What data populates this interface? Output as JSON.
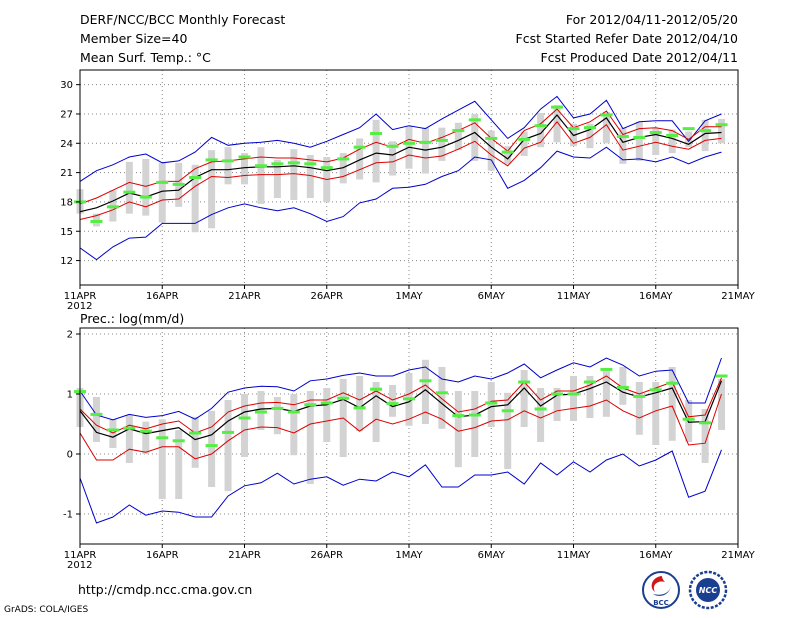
{
  "header": {
    "title": "DERF/NCC/BCC Monthly Forecast",
    "member_size": "Member Size=40",
    "variable": "Mean Surf. Temp.: °C",
    "period": "For 2012/04/11-2012/05/20",
    "started": "Fcst Started Refer Date 2012/04/10",
    "produced": "Fcst Produced Date 2012/04/11"
  },
  "footer": {
    "url": "http://cmdp.ncc.cma.gov.cn",
    "grads": "GrADS: COLA/IGES",
    "logo_left_text": "BCC",
    "logo_right_text": "NCC"
  },
  "colors": {
    "mean_line": "#000000",
    "inner_band": "#dd0000",
    "outer_band": "#0000cc",
    "box": "#d3d3d3",
    "median_marker": "#55ee44"
  },
  "chart_data": [
    {
      "type": "line",
      "title": "",
      "ylabel": "Mean Surf. Temp.: °C",
      "xlabel": "",
      "ylim": [
        9.5,
        31.5
      ],
      "yticks": [
        12,
        15,
        18,
        21,
        24,
        27,
        30
      ],
      "x": [
        1,
        2,
        3,
        4,
        5,
        6,
        7,
        8,
        9,
        10,
        11,
        12,
        13,
        14,
        15,
        16,
        17,
        18,
        19,
        20,
        21,
        22,
        23,
        24,
        25,
        26,
        27,
        28,
        29,
        30,
        31,
        32,
        33,
        34,
        35,
        36,
        37,
        38,
        39,
        40
      ],
      "xticks": [
        {
          "day": 1,
          "label": "11APR",
          "sub": "2012"
        },
        {
          "day": 6,
          "label": "16APR"
        },
        {
          "day": 11,
          "label": "21APR"
        },
        {
          "day": 16,
          "label": "26APR"
        },
        {
          "day": 21,
          "label": "1MAY"
        },
        {
          "day": 26,
          "label": "6MAY"
        },
        {
          "day": 31,
          "label": "11MAY"
        },
        {
          "day": 36,
          "label": "16MAY"
        },
        {
          "day": 41,
          "label": "21MAY"
        }
      ],
      "series": [
        {
          "name": "mean",
          "values": [
            17,
            17.4,
            18.1,
            18.9,
            18.5,
            19.1,
            19.2,
            20.5,
            21.3,
            21.3,
            21.5,
            21.6,
            21.6,
            21.7,
            21.5,
            21.2,
            21.5,
            22.3,
            23,
            22.8,
            23.6,
            23.3,
            23.6,
            24.3,
            25.1,
            23.6,
            22.4,
            24.4,
            25,
            26.9,
            24.8,
            25.4,
            26.6,
            24.1,
            24.6,
            24.9,
            24.5,
            23.9,
            25,
            25.1
          ]
        },
        {
          "name": "upper-inner",
          "values": [
            17.8,
            18.4,
            19.2,
            20,
            19.6,
            20.1,
            20.1,
            21.4,
            22.1,
            22.2,
            22.4,
            22.6,
            22.5,
            22.5,
            22.3,
            22.1,
            22.5,
            23.4,
            24.1,
            23.6,
            24.4,
            24,
            24.6,
            25.3,
            26.1,
            24.5,
            23.2,
            25.3,
            26,
            27.5,
            25.6,
            26.2,
            27.3,
            24.9,
            25.5,
            25.6,
            25.3,
            24.4,
            25.7,
            25.7
          ]
        },
        {
          "name": "lower-inner",
          "values": [
            16.2,
            16.6,
            17.2,
            18,
            17.5,
            18.2,
            18.3,
            19.6,
            20.6,
            20.5,
            20.7,
            20.8,
            20.8,
            20.9,
            20.7,
            20.3,
            20.6,
            21.3,
            22,
            22.1,
            22.8,
            22.5,
            22.7,
            23.4,
            24.2,
            22.8,
            21.7,
            23.5,
            24.1,
            26.2,
            24,
            24.6,
            25.9,
            23.3,
            23.7,
            24.1,
            23.7,
            23.4,
            24.3,
            24.5
          ]
        },
        {
          "name": "upper-outer",
          "values": [
            20.1,
            21.2,
            21.8,
            22.6,
            22.9,
            22,
            22.2,
            23.1,
            24.6,
            23.8,
            24,
            24.1,
            24.3,
            24,
            23.6,
            24.2,
            24.9,
            25.6,
            27,
            25.4,
            25.8,
            25.5,
            26.5,
            27.4,
            28.3,
            26.4,
            24.5,
            25.6,
            27.5,
            28.8,
            26.6,
            27,
            28.4,
            25.5,
            26.2,
            26.3,
            26.3,
            24.2,
            26.3,
            27
          ]
        },
        {
          "name": "lower-outer",
          "values": [
            13.3,
            12.1,
            13.4,
            14.3,
            14.4,
            15.8,
            15.8,
            15.8,
            16.7,
            17.4,
            17.8,
            17.4,
            17.1,
            17.4,
            16.8,
            16,
            16.5,
            17.9,
            18.3,
            19.4,
            19.5,
            19.8,
            20.6,
            21.2,
            22.6,
            22.3,
            19.4,
            20.2,
            21.5,
            23.2,
            22.6,
            22.5,
            23.6,
            22.3,
            22.4,
            22.1,
            22.6,
            21.9,
            22.6,
            23.1
          ]
        },
        {
          "name": "box-high",
          "values": [
            19.3,
            16.8,
            19.2,
            22.1,
            22.4,
            22,
            22,
            21.8,
            23.3,
            23.6,
            23,
            23.6,
            22.3,
            23.4,
            22.8,
            22.6,
            23,
            24.5,
            26.4,
            24.2,
            25.8,
            25.6,
            25.6,
            26.1,
            27,
            25.3,
            23.7,
            25.2,
            27.1,
            27.9,
            26,
            26,
            27.2,
            25.6,
            26.2,
            25.6,
            25.4,
            25.2,
            26.4,
            26.5
          ]
        },
        {
          "name": "box-low",
          "values": [
            16.8,
            15.5,
            16,
            16.8,
            16.6,
            15.9,
            17.5,
            14.9,
            15.3,
            19.8,
            19.8,
            17.8,
            18.4,
            18.2,
            18.4,
            18,
            19.9,
            20.3,
            20,
            20.7,
            21.4,
            20.9,
            22.2,
            23.3,
            22.2,
            21.2,
            21.9,
            22.7,
            23.6,
            24.1,
            23.7,
            23.5,
            24,
            21.9,
            22.2,
            22.8,
            23,
            23.6,
            23.2,
            24
          ]
        },
        {
          "name": "median-marker",
          "values": [
            18,
            16,
            17.5,
            19,
            18.5,
            20,
            19.8,
            20.5,
            22.3,
            22.2,
            22.6,
            21.7,
            21.9,
            22,
            21.9,
            21.5,
            22.4,
            23.6,
            25,
            23.7,
            24,
            24.1,
            24.3,
            25.3,
            26.4,
            24.5,
            23.1,
            24.4,
            25.8,
            27.7,
            25.5,
            25.6,
            26.9,
            24.7,
            24.6,
            25.1,
            24.8,
            25.5,
            25.3,
            25.9
          ]
        }
      ]
    },
    {
      "type": "line",
      "title": "",
      "ylabel": "Prec.: log(mm/d)",
      "xlabel": "",
      "ylim": [
        -1.5,
        2.1
      ],
      "yticks": [
        -1,
        0,
        1,
        2
      ],
      "x": [
        1,
        2,
        3,
        4,
        5,
        6,
        7,
        8,
        9,
        10,
        11,
        12,
        13,
        14,
        15,
        16,
        17,
        18,
        19,
        20,
        21,
        22,
        23,
        24,
        25,
        26,
        27,
        28,
        29,
        30,
        31,
        32,
        33,
        34,
        35,
        36,
        37,
        38,
        39,
        40
      ],
      "xticks": [
        {
          "day": 1,
          "label": "11APR",
          "sub": "2012"
        },
        {
          "day": 6,
          "label": "16APR"
        },
        {
          "day": 11,
          "label": "21APR"
        },
        {
          "day": 16,
          "label": "26APR"
        },
        {
          "day": 21,
          "label": "1MAY"
        },
        {
          "day": 26,
          "label": "6MAY"
        },
        {
          "day": 31,
          "label": "11MAY"
        },
        {
          "day": 36,
          "label": "16MAY"
        },
        {
          "day": 41,
          "label": "21MAY"
        }
      ],
      "series": [
        {
          "name": "mean",
          "values": [
            0.72,
            0.36,
            0.28,
            0.42,
            0.34,
            0.39,
            0.44,
            0.24,
            0.32,
            0.55,
            0.7,
            0.75,
            0.76,
            0.71,
            0.8,
            0.82,
            0.91,
            0.77,
            0.97,
            0.79,
            0.87,
            1.07,
            0.84,
            0.62,
            0.65,
            0.79,
            0.82,
            1.1,
            0.8,
            0.98,
            1,
            1.09,
            1.2,
            1.03,
            0.95,
            1.02,
            1.1,
            0.53,
            0.54,
            1.22
          ]
        },
        {
          "name": "upper-inner",
          "values": [
            0.75,
            0.48,
            0.35,
            0.48,
            0.42,
            0.5,
            0.55,
            0.35,
            0.45,
            0.7,
            0.8,
            0.85,
            0.86,
            0.82,
            0.9,
            0.9,
            1.02,
            0.9,
            1.05,
            0.9,
            1,
            1.15,
            0.92,
            0.7,
            0.75,
            0.88,
            0.9,
            1.2,
            0.9,
            1.05,
            1.05,
            1.15,
            1.3,
            1.1,
            1,
            1.1,
            1.2,
            0.62,
            0.65,
            1.27
          ]
        },
        {
          "name": "lower-inner",
          "values": [
            0.35,
            -0.1,
            -0.1,
            0.08,
            0.03,
            0.12,
            0.12,
            -0.08,
            0,
            0.22,
            0.4,
            0.45,
            0.44,
            0.35,
            0.5,
            0.55,
            0.6,
            0.38,
            0.58,
            0.5,
            0.58,
            0.7,
            0.58,
            0.38,
            0.44,
            0.55,
            0.57,
            0.72,
            0.6,
            0.72,
            0.76,
            0.8,
            0.9,
            0.72,
            0.6,
            0.72,
            0.8,
            0.15,
            0.18,
            1
          ]
        },
        {
          "name": "upper-outer",
          "values": [
            1.05,
            0.65,
            0.57,
            0.66,
            0.61,
            0.64,
            0.71,
            0.58,
            0.76,
            1.03,
            1.1,
            1.13,
            1.12,
            1.05,
            1.22,
            1.25,
            1.31,
            1.35,
            1.3,
            1.3,
            1.4,
            1.45,
            1.25,
            1.2,
            1.3,
            1.25,
            1.35,
            1.5,
            1.27,
            1.4,
            1.52,
            1.45,
            1.6,
            1.48,
            1.3,
            1.38,
            1.4,
            0.85,
            0.85,
            1.6
          ]
        },
        {
          "name": "lower-outer",
          "values": [
            -0.4,
            -1.15,
            -1.05,
            -0.85,
            -1.02,
            -0.95,
            -0.97,
            -1.05,
            -1.05,
            -0.7,
            -0.53,
            -0.48,
            -0.32,
            -0.5,
            -0.42,
            -0.38,
            -0.52,
            -0.42,
            -0.45,
            -0.3,
            -0.38,
            -0.18,
            -0.55,
            -0.55,
            -0.35,
            -0.35,
            -0.3,
            -0.5,
            -0.15,
            -0.35,
            -0.13,
            -0.3,
            -0.1,
            0,
            -0.2,
            -0.1,
            0.05,
            -0.72,
            -0.62,
            0.07
          ]
        },
        {
          "name": "box-high",
          "values": [
            1.1,
            0.95,
            0.58,
            0.65,
            0.54,
            0.58,
            0.4,
            0.62,
            0.72,
            0.9,
            1,
            1.05,
            0.95,
            1,
            1.05,
            1.1,
            1.25,
            1.3,
            1.2,
            1.15,
            1.35,
            1.57,
            1.45,
            1.05,
            1.05,
            1.2,
            1.02,
            1.4,
            1.1,
            1.1,
            1.3,
            1.3,
            1.42,
            1.45,
            1.2,
            1.2,
            1.45,
            0.9,
            0.75,
            1.25
          ]
        },
        {
          "name": "box-low",
          "values": [
            0.45,
            0.2,
            0.1,
            -0.15,
            0,
            -0.75,
            -0.75,
            -0.23,
            -0.55,
            -0.62,
            -0.05,
            0.4,
            0.33,
            -0.02,
            -0.5,
            0.2,
            -0.05,
            0.38,
            0.2,
            0.62,
            0.47,
            0.5,
            0.42,
            -0.22,
            -0.05,
            0.45,
            -0.25,
            0.45,
            0.2,
            0.55,
            0.55,
            0.6,
            0.62,
            0.82,
            0.32,
            0.15,
            0.22,
            0.2,
            -0.15,
            0.4
          ]
        },
        {
          "name": "median-marker",
          "values": [
            1.04,
            0.66,
            0.4,
            0.43,
            0.38,
            0.27,
            0.22,
            0.35,
            0.14,
            0.36,
            0.6,
            0.7,
            0.76,
            0.7,
            0.82,
            0.85,
            0.93,
            0.77,
            1.08,
            0.84,
            0.92,
            1.22,
            1.02,
            0.64,
            0.65,
            0.85,
            0.72,
            1.2,
            0.75,
            1,
            1,
            1.2,
            1.41,
            1.11,
            0.96,
            1.07,
            1.18,
            0.58,
            0.52,
            1.3
          ]
        }
      ]
    }
  ]
}
